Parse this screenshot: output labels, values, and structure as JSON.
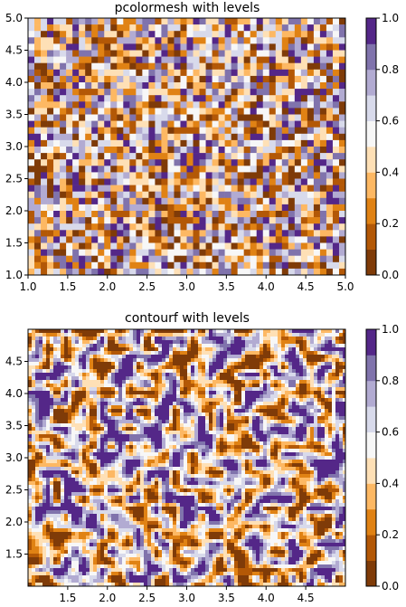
{
  "chart_data": [
    {
      "type": "heatmap",
      "title": "pcolormesh with levels",
      "xlim": [
        1.0,
        5.0
      ],
      "ylim": [
        1.0,
        5.0
      ],
      "xticks": [
        "1.0",
        "1.5",
        "2.0",
        "2.5",
        "3.0",
        "3.5",
        "4.0",
        "4.5",
        "5.0"
      ],
      "yticks": [
        "1.0",
        "1.5",
        "2.0",
        "2.5",
        "3.0",
        "3.5",
        "4.0",
        "4.5",
        "5.0"
      ],
      "grid": false,
      "cmap": "PuOr",
      "levels": [
        0.0,
        0.1,
        0.2,
        0.3,
        0.4,
        0.5,
        0.6,
        0.7,
        0.8,
        0.9,
        1.0
      ],
      "colorbar_ticks": [
        "0.0",
        "0.2",
        "0.4",
        "0.6",
        "0.8",
        "1.0"
      ],
      "grid_cells": [
        50,
        40
      ],
      "values": "random uniform noise in [0, 1]"
    },
    {
      "type": "heatmap",
      "title": "contourf with levels",
      "xlim": [
        1.0,
        5.0
      ],
      "ylim": [
        1.0,
        5.0
      ],
      "xticks": [
        "1.5",
        "2.0",
        "2.5",
        "3.0",
        "3.5",
        "4.0",
        "4.5"
      ],
      "yticks": [
        "1.5",
        "2.0",
        "2.5",
        "3.0",
        "3.5",
        "4.0",
        "4.5"
      ],
      "grid": false,
      "cmap": "PuOr",
      "levels": [
        0.0,
        0.1,
        0.2,
        0.3,
        0.4,
        0.5,
        0.6,
        0.7,
        0.8,
        0.9,
        1.0
      ],
      "colorbar_ticks": [
        "0.0",
        "0.2",
        "0.4",
        "0.6",
        "0.8",
        "1.0"
      ],
      "values": "filled contours of smoothed random noise in [0, 1]"
    }
  ],
  "colors": {
    "level_colors": [
      "#7f3b08",
      "#b35806",
      "#e08214",
      "#fdb863",
      "#fee0b6",
      "#f7f7f7",
      "#d8daeb",
      "#b2abd2",
      "#8073ac",
      "#542788",
      "#2d004b"
    ]
  }
}
